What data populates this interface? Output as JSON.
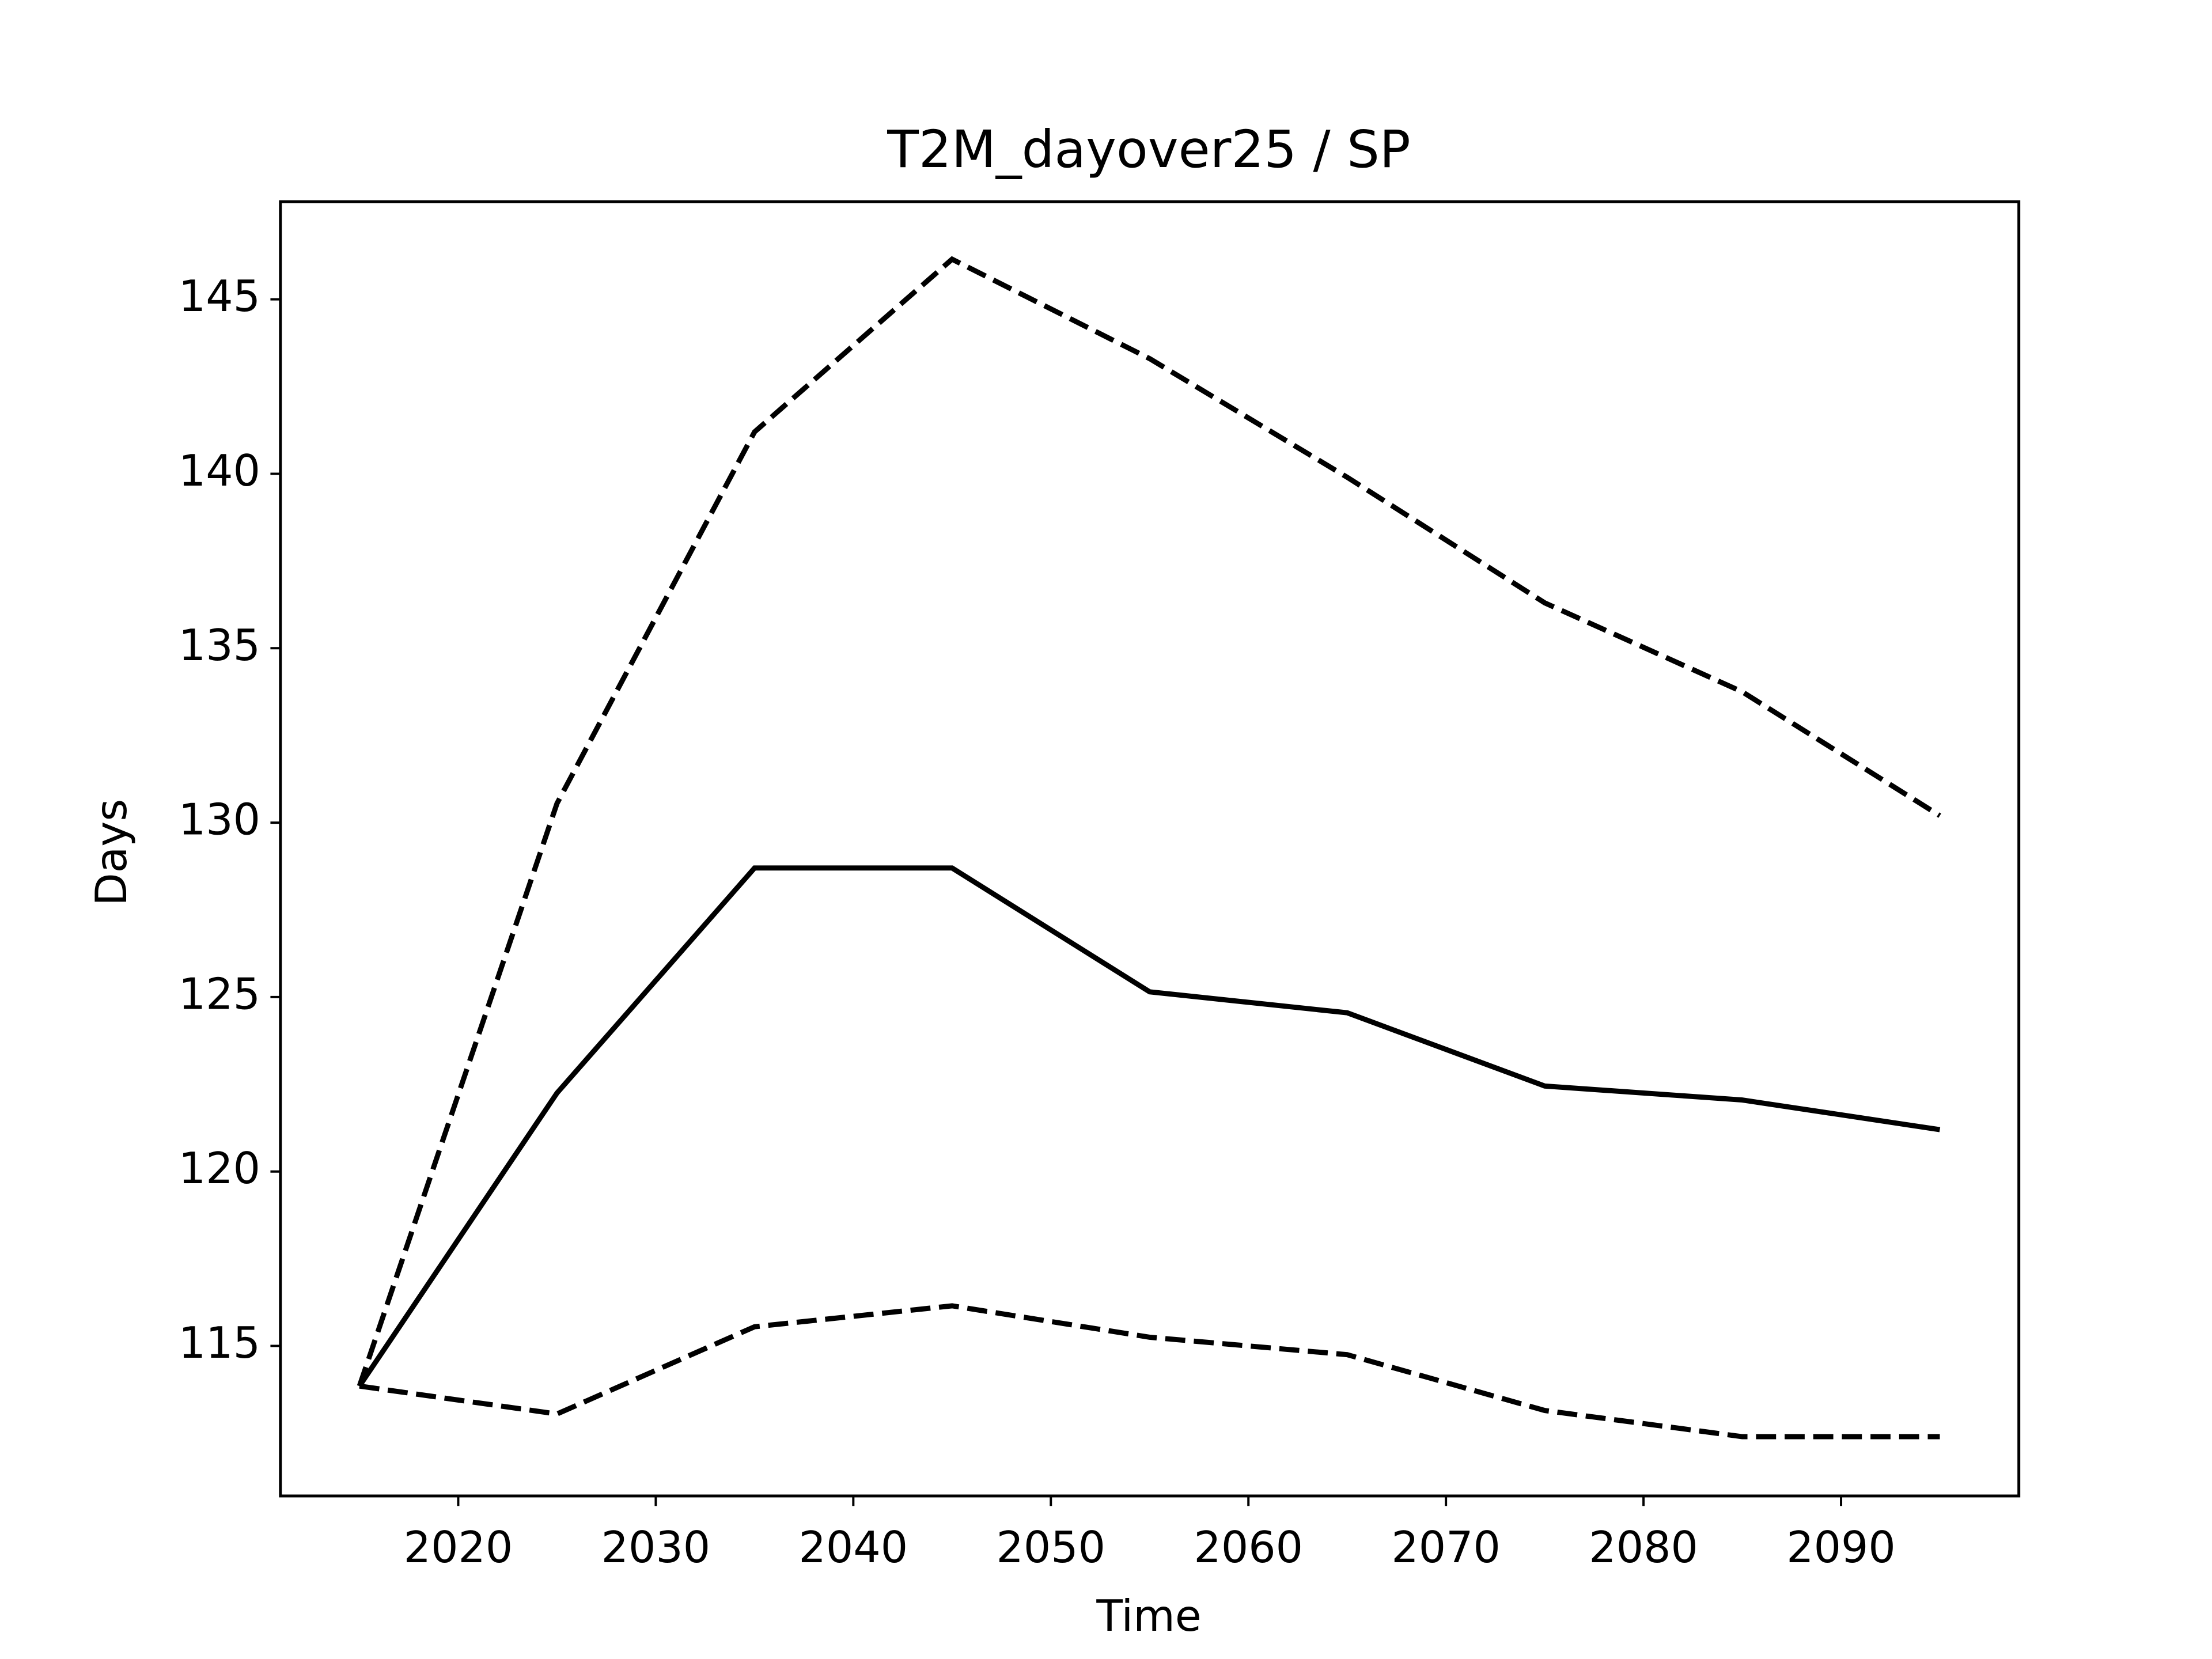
{
  "chart_data": {
    "type": "line",
    "title": "T2M_dayover25 / SP",
    "xlabel": "Time",
    "ylabel": "Days",
    "x": [
      2015,
      2025,
      2035,
      2045,
      2055,
      2065,
      2075,
      2085,
      2095
    ],
    "series": [
      {
        "color": "#000000",
        "linestyle": "solid",
        "values": [
          113.85,
          122.25,
          128.7,
          128.7,
          125.15,
          124.55,
          122.45,
          122.05,
          121.2
        ]
      },
      {
        "color": "#000000",
        "linestyle": "dashed",
        "values": [
          113.85,
          130.55,
          141.2,
          146.15,
          143.3,
          139.9,
          136.3,
          133.75,
          130.2
        ]
      },
      {
        "color": "#000000",
        "linestyle": "dashed",
        "values": [
          113.85,
          113.05,
          115.55,
          116.15,
          115.25,
          114.75,
          113.15,
          112.4,
          112.4
        ]
      }
    ],
    "xlim": [
      2011,
      2099
    ],
    "ylim": [
      110.7,
      147.8
    ],
    "xticks": [
      2020,
      2030,
      2040,
      2050,
      2060,
      2070,
      2080,
      2090
    ],
    "yticks": [
      115,
      120,
      125,
      130,
      135,
      140,
      145
    ],
    "grid": false
  }
}
